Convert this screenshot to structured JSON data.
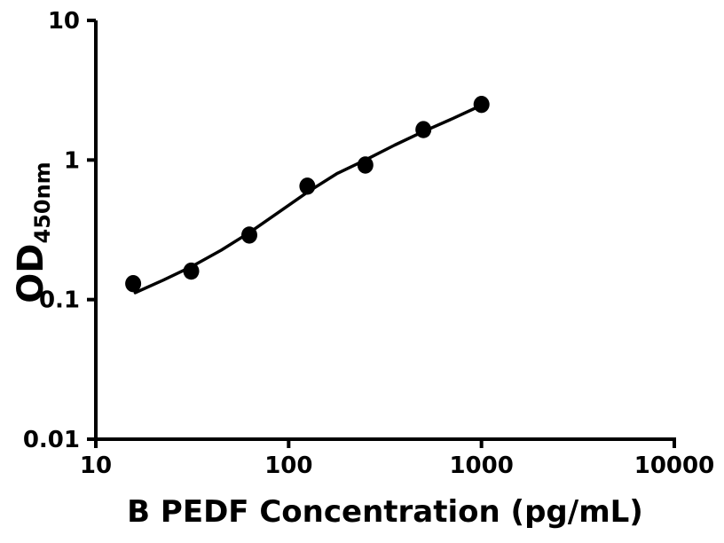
{
  "figure": {
    "background_color": "#ffffff",
    "ink_color": "#000000"
  },
  "chart_data": {
    "type": "scatter",
    "subtype": "scatter-with-fit-line",
    "title": "",
    "xlabel": "B PEDF Concentration (pg/mL)",
    "ylabel_main": "OD",
    "ylabel_sub": "450nm",
    "x_scale": "log",
    "y_scale": "log",
    "xlim": [
      10,
      10000
    ],
    "ylim": [
      0.01,
      10
    ],
    "grid": false,
    "legend_position": "none",
    "x_ticks": [
      {
        "value": 10,
        "label": "10"
      },
      {
        "value": 100,
        "label": "100"
      },
      {
        "value": 1000,
        "label": "1000"
      },
      {
        "value": 10000,
        "label": "10000"
      }
    ],
    "y_ticks": [
      {
        "value": 10,
        "label": "10"
      },
      {
        "value": 1,
        "label": "1"
      },
      {
        "value": 0.1,
        "label": "0.1"
      },
      {
        "value": 0.01,
        "label": "0.01"
      }
    ],
    "series": [
      {
        "name": "standard-points",
        "type": "scatter",
        "marker": "filled-circle",
        "color": "#000000",
        "x": [
          15.625,
          31.25,
          62.5,
          125,
          250,
          500,
          1000
        ],
        "y": [
          0.13,
          0.16,
          0.29,
          0.65,
          0.92,
          1.65,
          2.5
        ]
      },
      {
        "name": "fit-curve",
        "type": "line",
        "color": "#000000",
        "x": [
          16,
          22.4,
          31.3,
          44.7,
          62.5,
          89,
          125,
          178,
          250,
          355,
          500,
          708,
          1000
        ],
        "y": [
          0.112,
          0.138,
          0.172,
          0.226,
          0.302,
          0.423,
          0.587,
          0.8,
          1.0,
          1.28,
          1.6,
          1.98,
          2.47
        ]
      }
    ]
  }
}
